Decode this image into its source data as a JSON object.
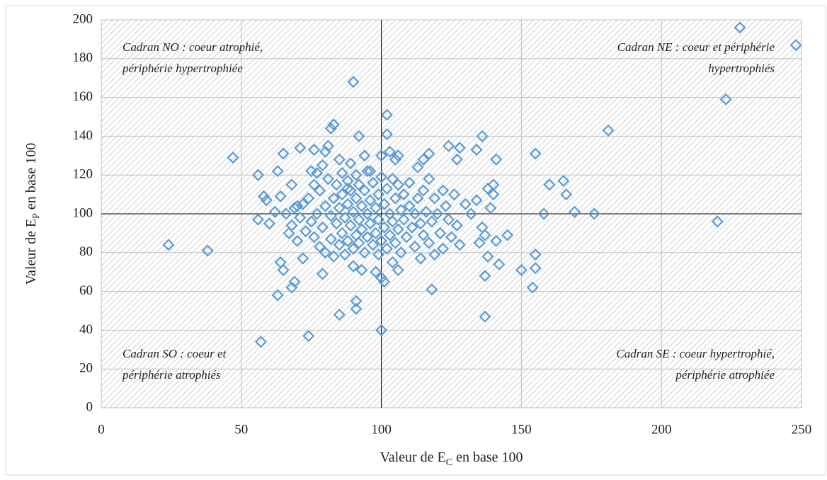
{
  "chart_data": {
    "type": "scatter",
    "xlabel": {
      "text": "Valeur de E",
      "sub": "C",
      "rest": " en base 100"
    },
    "ylabel": {
      "text": "Valeur de E",
      "sub": "P",
      "rest": " en base 100"
    },
    "annotations": [
      {
        "lines": [
          "Cadran NO : coeur atrophié,",
          "périphérie hypertrophiée"
        ],
        "corner": "top-left"
      },
      {
        "lines": [
          "Cadran NE : coeur et périphérie",
          "hypertrophiés"
        ],
        "corner": "top-right"
      },
      {
        "lines": [
          "Cadran SO : coeur et",
          "périphérie atrophiés"
        ],
        "corner": "bottom-left"
      },
      {
        "lines": [
          "Cadran SE : coeur hypertrophié,",
          "périphérie atrophiée"
        ],
        "corner": "bottom-right"
      }
    ],
    "xref": 100,
    "yref": 100,
    "color": "#5b9bd5",
    "xlim": [
      0,
      250
    ],
    "xticks": [
      0,
      50,
      100,
      150,
      200,
      250
    ],
    "ylim": [
      0,
      200
    ],
    "yticks": [
      0,
      20,
      40,
      60,
      80,
      100,
      120,
      140,
      160,
      180,
      200
    ],
    "x": [
      24,
      38,
      47,
      57,
      74,
      56,
      56,
      58,
      59,
      62,
      63,
      63,
      64,
      65,
      65,
      67,
      68,
      68,
      69,
      71,
      70,
      72,
      75,
      76,
      79,
      80,
      81,
      82,
      83,
      85,
      90,
      91,
      91,
      92,
      93,
      94,
      100,
      100,
      101,
      102,
      102,
      103,
      104,
      106,
      106,
      113,
      115,
      117,
      118,
      122,
      124,
      127,
      128,
      134,
      136,
      137,
      137,
      138,
      140,
      141,
      142,
      145,
      150,
      154,
      155,
      155,
      155,
      158,
      160,
      165,
      166,
      169,
      176,
      181,
      220,
      223,
      228,
      248,
      72,
      74,
      75,
      76,
      77,
      78,
      78,
      79,
      80,
      80,
      81,
      82,
      82,
      83,
      83,
      84,
      84,
      85,
      85,
      86,
      86,
      86,
      87,
      87,
      88,
      88,
      88,
      89,
      89,
      89,
      90,
      90,
      90,
      91,
      91,
      91,
      92,
      92,
      92,
      93,
      93,
      94,
      94,
      95,
      95,
      96,
      96,
      96,
      97,
      97,
      98,
      98,
      99,
      99,
      99,
      100,
      100,
      100,
      101,
      101,
      102,
      102,
      103,
      103,
      104,
      104,
      105,
      105,
      106,
      106,
      107,
      107,
      108,
      108,
      109,
      110,
      110,
      111,
      112,
      112,
      113,
      114,
      114,
      115,
      115,
      116,
      117,
      117,
      118,
      119,
      119,
      120,
      121,
      122,
      123,
      124,
      125,
      126,
      127,
      128,
      130,
      132,
      134,
      135,
      136,
      137,
      138,
      139,
      140,
      141,
      60,
      64,
      66,
      68,
      69,
      70,
      71,
      73,
      76,
      77,
      79,
      85,
      88,
      95,
      98,
      105
    ],
    "values": [
      84,
      81,
      129,
      34,
      37,
      120,
      97,
      109,
      107,
      101,
      122,
      58,
      75,
      71,
      131,
      90,
      115,
      62,
      65,
      134,
      104,
      77,
      122,
      133,
      69,
      132,
      135,
      144,
      146,
      48,
      168,
      55,
      51,
      140,
      71,
      130,
      40,
      67,
      65,
      151,
      141,
      132,
      75,
      71,
      130,
      124,
      128,
      131,
      61,
      112,
      135,
      128,
      134,
      133,
      140,
      47,
      68,
      78,
      115,
      128,
      74,
      89,
      71,
      62,
      72,
      79,
      131,
      100,
      115,
      117,
      110,
      101,
      100,
      143,
      96,
      159,
      196,
      187,
      105,
      108,
      96,
      88,
      100,
      112,
      83,
      93,
      80,
      104,
      118,
      99,
      87,
      108,
      78,
      115,
      95,
      103,
      84,
      121,
      110,
      90,
      98,
      79,
      117,
      105,
      86,
      126,
      112,
      94,
      101,
      82,
      73,
      120,
      108,
      89,
      115,
      97,
      85,
      104,
      92,
      112,
      80,
      100,
      88,
      122,
      107,
      95,
      116,
      84,
      103,
      90,
      110,
      97,
      79,
      130,
      119,
      86,
      105,
      93,
      113,
      82,
      100,
      89,
      118,
      96,
      108,
      85,
      115,
      92,
      102,
      80,
      110,
      97,
      88,
      104,
      116,
      93,
      83,
      100,
      108,
      95,
      77,
      112,
      89,
      101,
      85,
      118,
      96,
      108,
      79,
      100,
      90,
      82,
      104,
      97,
      88,
      110,
      94,
      84,
      105,
      100,
      107,
      85,
      93,
      89,
      113,
      103,
      110,
      86,
      95,
      109,
      100,
      94,
      103,
      86,
      98,
      91,
      115,
      121,
      125,
      128,
      113,
      122,
      70,
      128
    ]
  }
}
